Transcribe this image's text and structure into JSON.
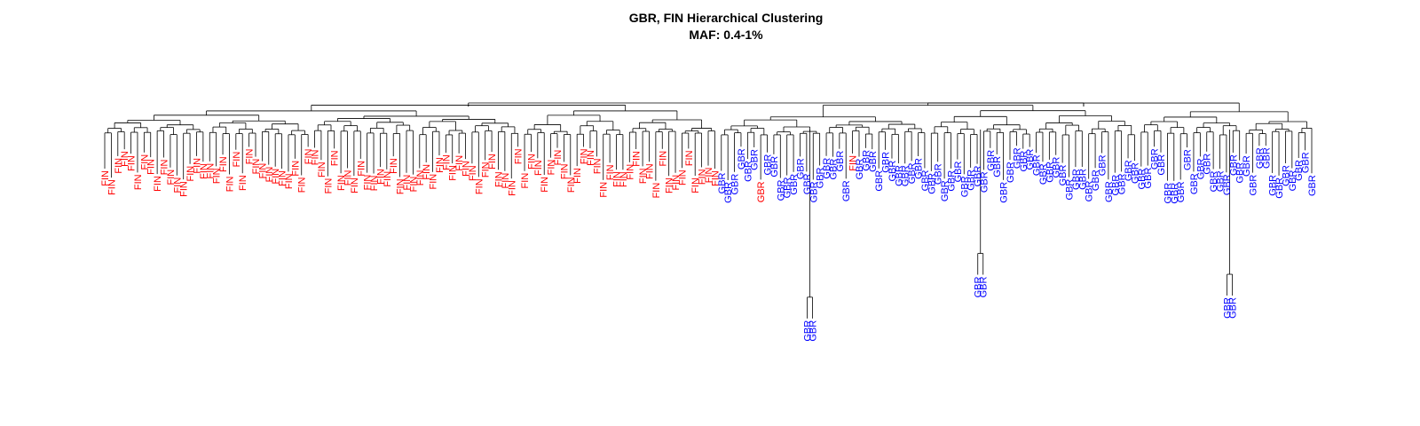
{
  "chart_data": {
    "type": "dendrogram",
    "title": "GBR, FIN Hierarchical Clustering",
    "subtitle": "MAF: 0.4-1%",
    "xlabel": "",
    "ylabel": "",
    "grid": false,
    "legend": "none",
    "groups": [
      {
        "name": "FIN",
        "color": "#ff0000",
        "leaf_count": 94,
        "leaf_label": "FIN"
      },
      {
        "name": "GBR",
        "color": "#0000ff",
        "leaf_count": 91,
        "leaf_label": "GBR"
      }
    ],
    "cluster_order": [
      "FIN",
      "GBR"
    ],
    "interleaved_labels": [
      {
        "label": "GBR",
        "group": "GBR",
        "color": "#ff0000",
        "position_in_group": 6
      },
      {
        "label": "FIN",
        "group": "GBR",
        "color": "#ff0000",
        "position_in_group": 20
      }
    ],
    "outlier_pairs": [
      {
        "group": "GBR",
        "labels": [
          "GBR",
          "GBR"
        ],
        "near_leaf": 13
      },
      {
        "group": "GBR",
        "labels": [
          "GBR",
          "GBR"
        ],
        "near_leaf": 39
      },
      {
        "group": "GBR",
        "labels": [
          "GBR",
          "GBR"
        ],
        "near_leaf": 77
      }
    ]
  }
}
